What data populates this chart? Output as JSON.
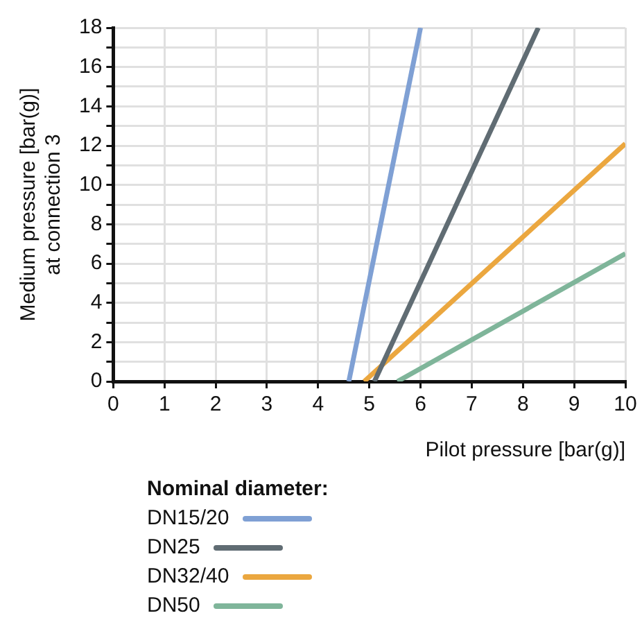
{
  "chart_data": {
    "type": "line",
    "xlabel": "Pilot pressure [bar(g)]",
    "ylabel": "Medium pressure [bar(g)]\nat connection 3",
    "legend_title": "Nominal diameter:",
    "series": [
      {
        "name": "DN15/20",
        "color": "#7fa0d4",
        "x": [
          4.6,
          6.0
        ],
        "values": [
          0,
          18
        ]
      },
      {
        "name": "DN25",
        "color": "#606c73",
        "x": [
          5.1,
          8.3
        ],
        "values": [
          0,
          18
        ]
      },
      {
        "name": "DN32/40",
        "color": "#eba73f",
        "x": [
          4.9,
          10
        ],
        "values": [
          0,
          12.1
        ]
      },
      {
        "name": "DN50",
        "color": "#7fb59a",
        "x": [
          5.55,
          10
        ],
        "values": [
          0,
          6.5
        ]
      }
    ],
    "xlim": [
      0,
      10
    ],
    "xticks": [
      0,
      1,
      2,
      3,
      4,
      5,
      6,
      7,
      8,
      9,
      10
    ],
    "ylim": [
      0,
      18
    ],
    "yticks": [
      0,
      {
        "value": 1,
        "label": null
      },
      2,
      {
        "value": 3,
        "label": null
      },
      4,
      {
        "value": 5,
        "label": null
      },
      6,
      {
        "value": 7,
        "label": null
      },
      8,
      {
        "value": 9,
        "label": null
      },
      10,
      {
        "value": 11,
        "label": null
      },
      12,
      {
        "value": 13,
        "label": null
      },
      14,
      {
        "value": 15,
        "label": null
      },
      16,
      {
        "value": 17,
        "label": null
      },
      18
    ],
    "grid": true,
    "legend": "bottom left",
    "marker": "none",
    "line_style": "solid"
  }
}
